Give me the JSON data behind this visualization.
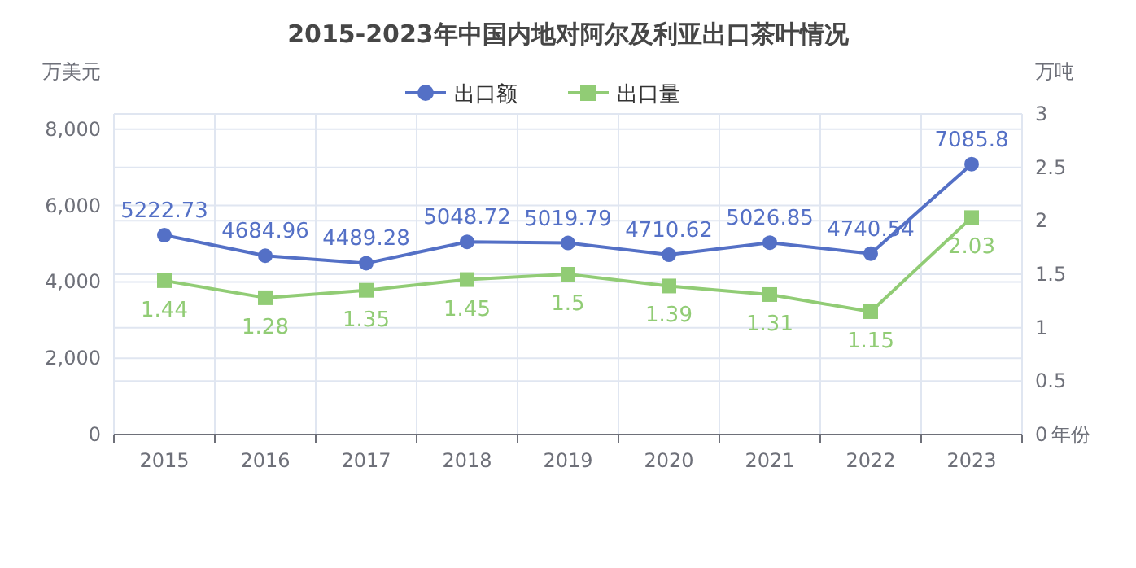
{
  "chart_data": {
    "type": "line",
    "title": "2015-2023年中国内地对阿尔及利亚出口茶叶情况",
    "categories": [
      "2015",
      "2016",
      "2017",
      "2018",
      "2019",
      "2020",
      "2021",
      "2022",
      "2023"
    ],
    "xlabel": "年份",
    "ylabel": "万美元",
    "y2label": "万吨",
    "series": [
      {
        "name": "出口额",
        "color": "#5470c6",
        "marker": "circle",
        "values": [
          5222.73,
          4684.96,
          4489.28,
          5048.72,
          5019.79,
          4710.62,
          5026.85,
          4740.54,
          7085.8
        ]
      },
      {
        "name": "出口量",
        "color": "#91cc75",
        "marker": "square",
        "axis": "y2",
        "values": [
          1.44,
          1.28,
          1.35,
          1.45,
          1.5,
          1.39,
          1.31,
          1.15,
          2.03
        ]
      }
    ],
    "ylim": [
      0,
      8400
    ],
    "yticks": [
      {
        "value": 0,
        "label": "0"
      },
      {
        "value": 2000,
        "label": "2,000"
      },
      {
        "value": 4000,
        "label": "4,000"
      },
      {
        "value": 6000,
        "label": "6,000"
      },
      {
        "value": 8000,
        "label": "8,000"
      }
    ],
    "y2lim": [
      0,
      3
    ],
    "y2ticks": [
      0,
      0.5,
      1,
      1.5,
      2,
      2.5,
      3
    ],
    "grid": true,
    "legend": "top",
    "data_labels": true
  }
}
